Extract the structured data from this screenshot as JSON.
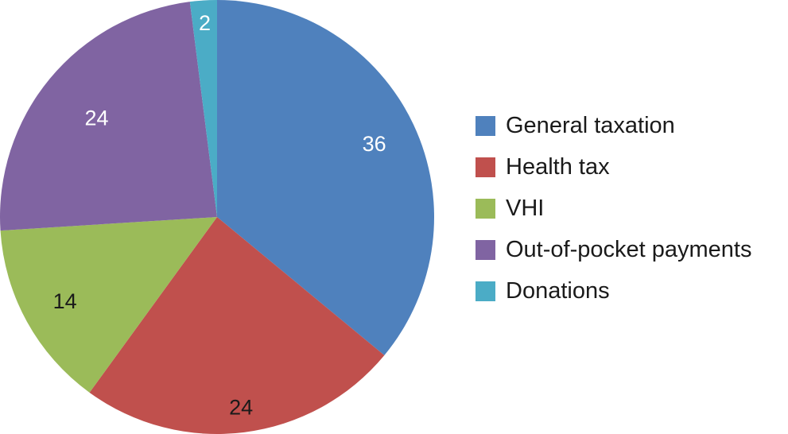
{
  "chart_data": {
    "type": "pie",
    "title": "",
    "categories": [
      "General taxation",
      "Health tax",
      "VHI",
      "Out-of-pocket payments",
      "Donations"
    ],
    "values": [
      36,
      24,
      14,
      24,
      2
    ],
    "colors": [
      "#4f81bd",
      "#c0504d",
      "#9bbb59",
      "#8064a2",
      "#4bacc6"
    ],
    "label_colors": [
      "#ffffff",
      "#1a1a1a",
      "#1a1a1a",
      "#ffffff",
      "#ffffff"
    ],
    "legend_position": "right",
    "start_angle": "top, clockwise"
  },
  "legend": {
    "items": [
      {
        "label": "General taxation",
        "color": "#4f81bd"
      },
      {
        "label": "Health tax",
        "color": "#c0504d"
      },
      {
        "label": "VHI",
        "color": "#9bbb59"
      },
      {
        "label": "Out-of-pocket payments",
        "color": "#8064a2"
      },
      {
        "label": "Donations",
        "color": "#4bacc6"
      }
    ]
  }
}
